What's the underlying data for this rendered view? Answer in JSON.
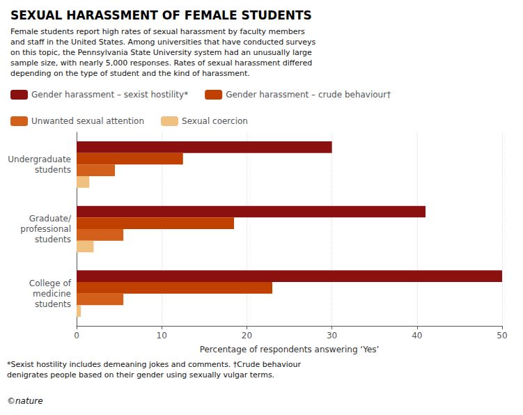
{
  "chart_data": {
    "type": "bar",
    "orientation": "horizontal",
    "title": "SEXUAL HARASSMENT OF FEMALE STUDENTS",
    "subtitle": "Female students report high rates of sexual harassment by faculty members\nand staff in the United States. Among universities that have conducted surveys\non this topic, the Pennsylvania State University system had an unusually large\nsample size, with nearly 5,000 responses. Rates of sexual harassment differed\ndepending on the type of student and the kind of harassment.",
    "annotations": [
      "*Sexist hostility includes demeaning jokes and comments. †Crude behaviour\ndenigrates people based on their gender using sexually vulgar terms.",
      "©nature"
    ],
    "xlabel": "Percentage of respondents answering ‘Yes’",
    "xlim": [
      0,
      50
    ],
    "xticks": [
      0,
      10,
      20,
      30,
      40,
      50
    ],
    "grid": true,
    "categories": [
      "Undergraduate\nstudents",
      "Graduate/\nprofessional\nstudents",
      "College of\nmedicine\nstudents"
    ],
    "series": [
      {
        "name": "Gender harassment – sexist hostility*",
        "color": "#8B1010",
        "values": [
          30,
          41,
          50
        ]
      },
      {
        "name": "Gender harassment – crude behaviour†",
        "color": "#C04000",
        "values": [
          12.5,
          18.5,
          23
        ]
      },
      {
        "name": "Unwanted sexual attention",
        "color": "#D2601A",
        "values": [
          4.5,
          5.5,
          5.5
        ]
      },
      {
        "name": "Sexual coercion",
        "color": "#F0C080",
        "values": [
          1.5,
          2.0,
          0.5
        ]
      }
    ]
  }
}
